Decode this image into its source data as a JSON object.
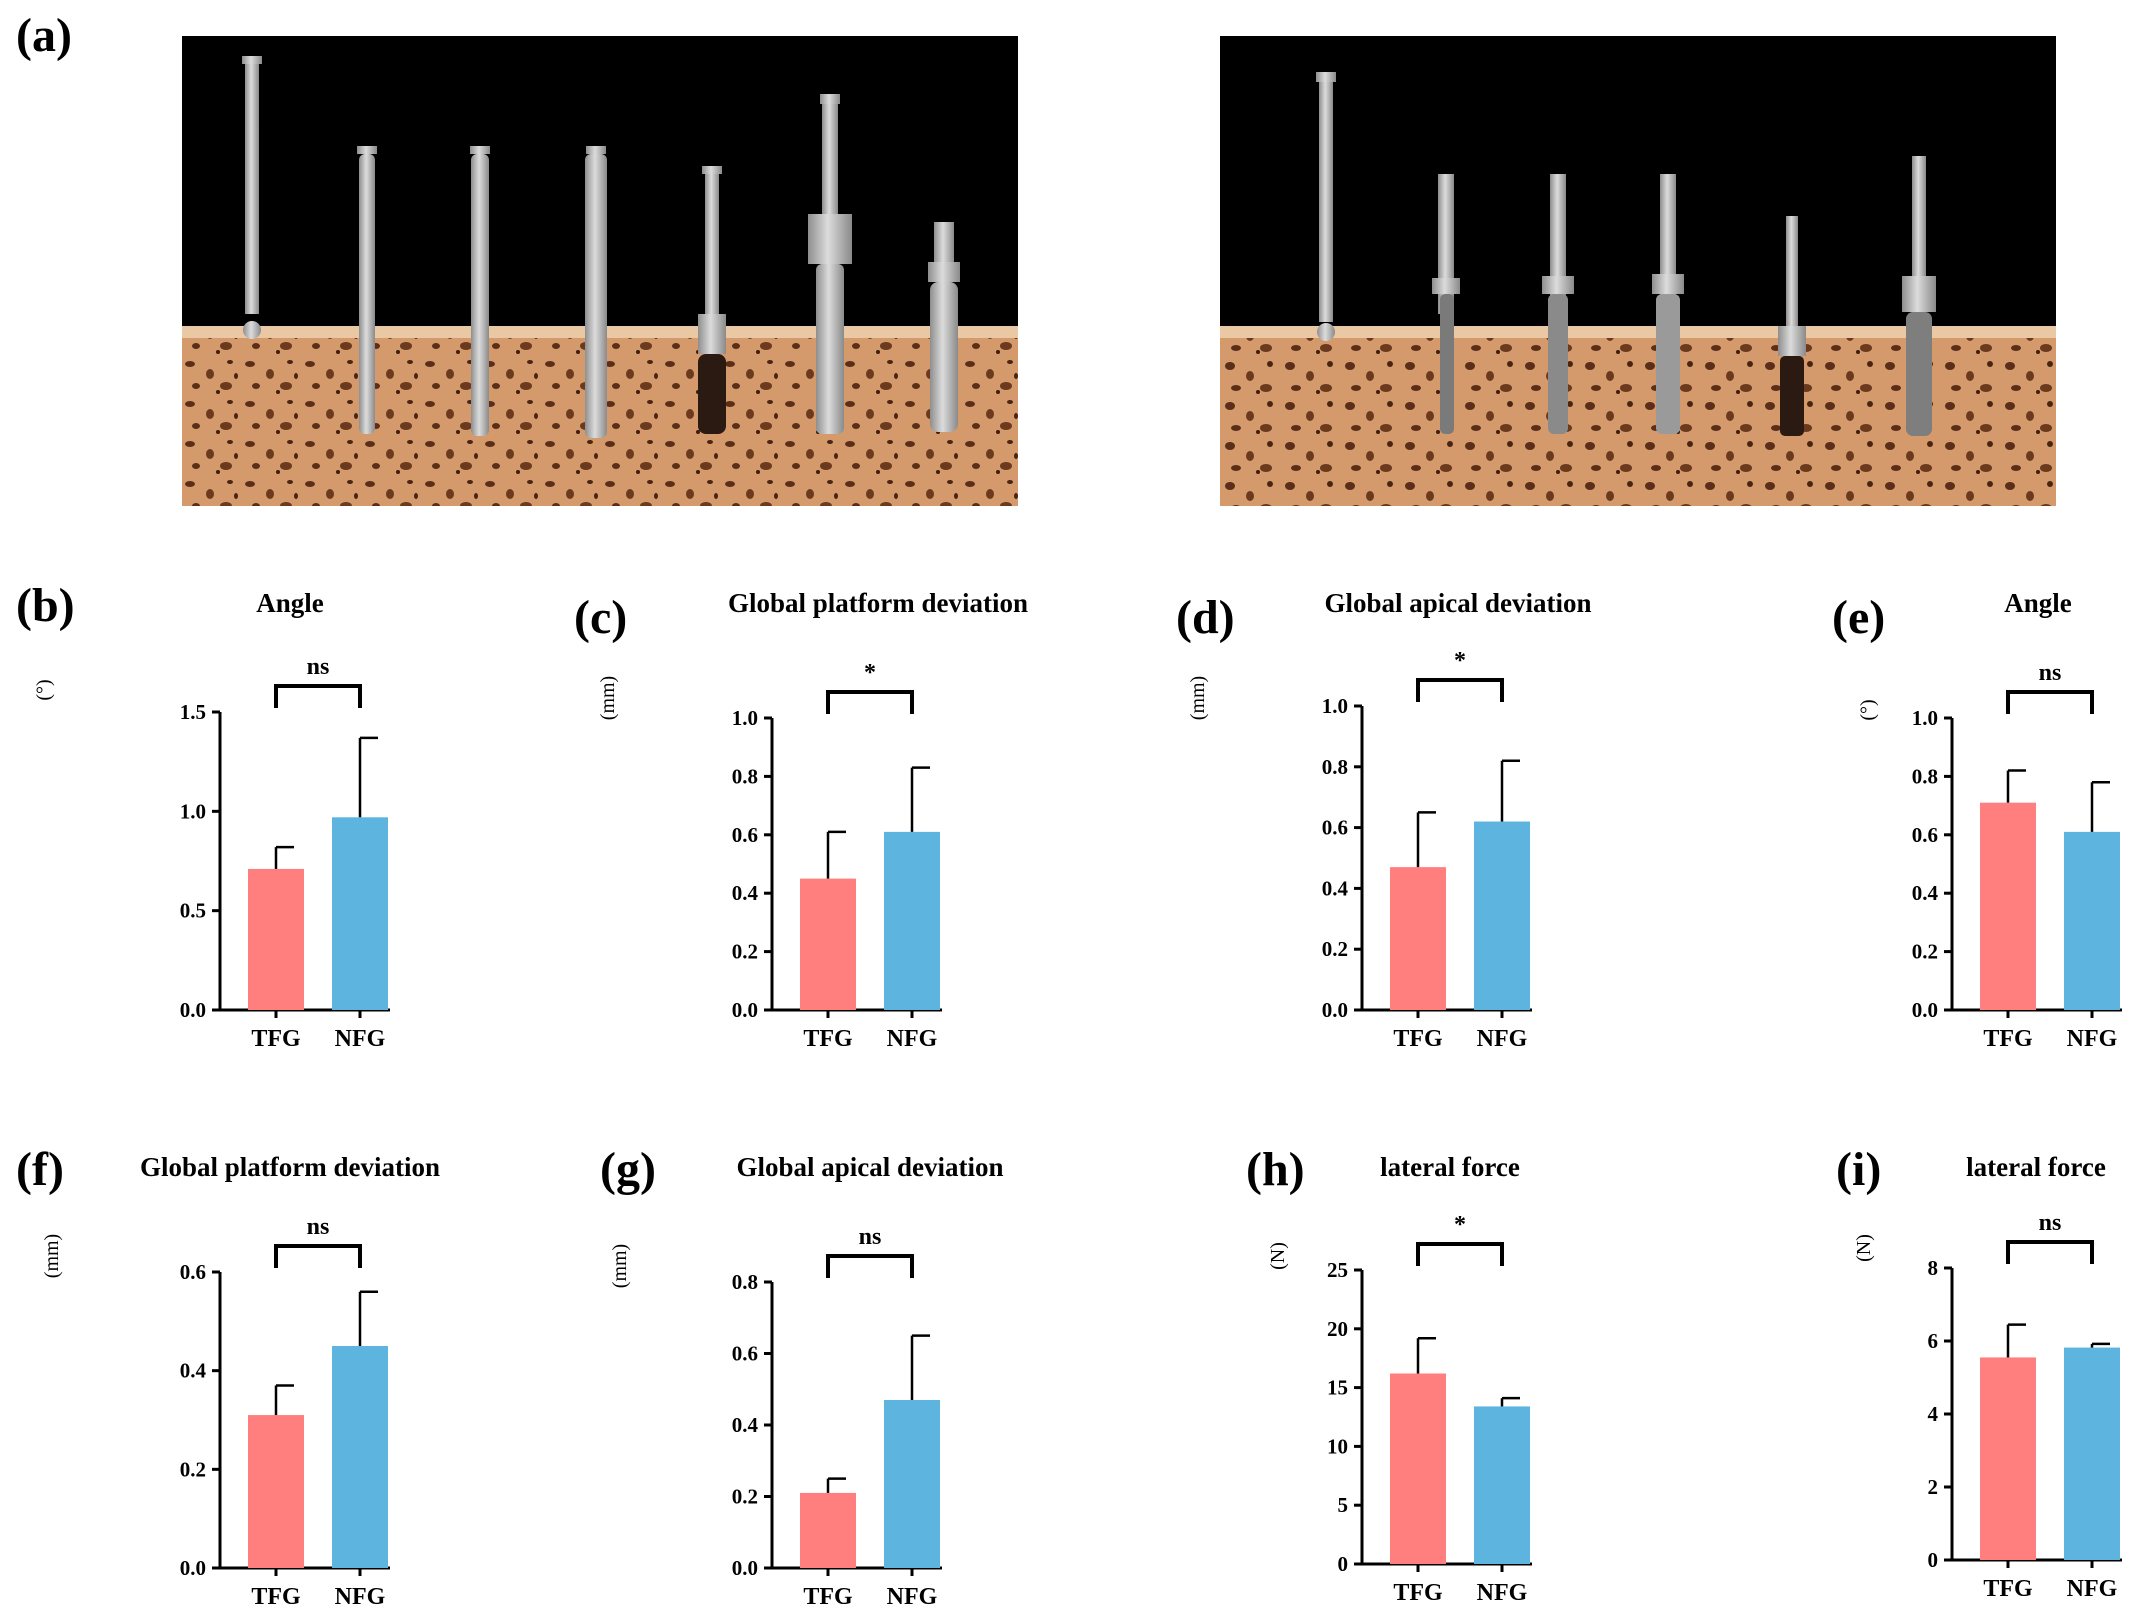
{
  "panel_labels": {
    "a": "(a)",
    "b": "(b)",
    "c": "(c)",
    "d": "(d)",
    "e": "(e)",
    "f": "(f)",
    "g": "(g)",
    "h": "(h)",
    "i": "(i)"
  },
  "colors": {
    "tfg": "#FF7F7F",
    "nfg": "#5DB5DF",
    "photo_bg": "#000000",
    "bone": "#D49A6B",
    "bone_light": "#EBC8A4",
    "bone_pore": "#5A2E18",
    "instrument": "#B9B9B9",
    "instrument_dark": "#2A1A12"
  },
  "photos": [
    {
      "name": "photo-left",
      "instruments": [
        "pilot-drill",
        "twist-drill",
        "twist-drill",
        "twist-drill",
        "countersink-drill",
        "tap-mount",
        "implant"
      ]
    },
    {
      "name": "photo-right",
      "instruments": [
        "pilot-drill",
        "guided-drill",
        "guided-drill",
        "guided-drill",
        "guided-countersink",
        "guided-implant"
      ]
    }
  ],
  "chart_data": [
    {
      "panel": "b",
      "type": "bar",
      "title": "Angle",
      "ylabel": "(°)",
      "categories": [
        "TFG",
        "NFG"
      ],
      "values": [
        0.71,
        0.97
      ],
      "errors": [
        0.11,
        0.4
      ],
      "ylim": [
        0,
        1.5
      ],
      "yticks": [
        "0.0",
        "0.5",
        "1.0",
        "1.5"
      ],
      "significance": "ns",
      "ylabel_vertical": true
    },
    {
      "panel": "c",
      "type": "bar",
      "title": "Global platform deviation",
      "ylabel": "(mm)",
      "categories": [
        "TFG",
        "NFG"
      ],
      "values": [
        0.45,
        0.61
      ],
      "errors": [
        0.16,
        0.22
      ],
      "ylim": [
        0,
        1.0
      ],
      "yticks": [
        "0.0",
        "0.2",
        "0.4",
        "0.6",
        "0.8",
        "1.0"
      ],
      "significance": "*"
    },
    {
      "panel": "d",
      "type": "bar",
      "title": "Global apical deviation",
      "ylabel": "(mm)",
      "categories": [
        "TFG",
        "NFG"
      ],
      "values": [
        0.47,
        0.62
      ],
      "errors": [
        0.18,
        0.2
      ],
      "ylim": [
        0,
        1.0
      ],
      "yticks": [
        "0.0",
        "0.2",
        "0.4",
        "0.6",
        "0.8",
        "1.0"
      ],
      "significance": "*"
    },
    {
      "panel": "e",
      "type": "bar",
      "title": "Angle",
      "ylabel": "(°)",
      "categories": [
        "TFG",
        "NFG"
      ],
      "values": [
        0.71,
        0.61
      ],
      "errors": [
        0.11,
        0.17
      ],
      "ylim": [
        0,
        1.0
      ],
      "yticks": [
        "0.0",
        "0.2",
        "0.4",
        "0.6",
        "0.8",
        "1.0"
      ],
      "significance": "ns",
      "ylabel_vertical": true
    },
    {
      "panel": "f",
      "type": "bar",
      "title": "Global platform deviation",
      "ylabel": "(mm)",
      "categories": [
        "TFG",
        "NFG"
      ],
      "values": [
        0.31,
        0.45
      ],
      "errors": [
        0.06,
        0.11
      ],
      "ylim": [
        0,
        0.6
      ],
      "yticks": [
        "0.0",
        "0.2",
        "0.4",
        "0.6"
      ],
      "significance": "ns"
    },
    {
      "panel": "g",
      "type": "bar",
      "title": "Global apical deviation",
      "ylabel": "(mm)",
      "categories": [
        "TFG",
        "NFG"
      ],
      "values": [
        0.21,
        0.47
      ],
      "errors": [
        0.04,
        0.18
      ],
      "ylim": [
        0,
        0.8
      ],
      "yticks": [
        "0.0",
        "0.2",
        "0.4",
        "0.6",
        "0.8"
      ],
      "significance": "ns"
    },
    {
      "panel": "h",
      "type": "bar",
      "title": "lateral force",
      "ylabel": "(N)",
      "categories": [
        "TFG",
        "NFG"
      ],
      "values": [
        16.2,
        13.4
      ],
      "errors": [
        3.0,
        0.7
      ],
      "ylim": [
        0,
        25
      ],
      "yticks": [
        "0",
        "5",
        "10",
        "15",
        "20",
        "25"
      ],
      "significance": "*"
    },
    {
      "panel": "i",
      "type": "bar",
      "title": "lateral force",
      "ylabel": "(N)",
      "categories": [
        "TFG",
        "NFG"
      ],
      "values": [
        5.55,
        5.82
      ],
      "errors": [
        0.9,
        0.1
      ],
      "ylim": [
        0,
        8
      ],
      "yticks": [
        "0",
        "2",
        "4",
        "6",
        "8"
      ],
      "significance": "ns"
    }
  ]
}
